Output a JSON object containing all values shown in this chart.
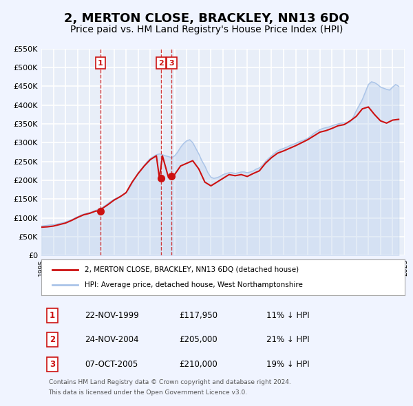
{
  "title": "2, MERTON CLOSE, BRACKLEY, NN13 6DQ",
  "subtitle": "Price paid vs. HM Land Registry's House Price Index (HPI)",
  "title_fontsize": 13,
  "subtitle_fontsize": 10,
  "ylabel": "",
  "ylim": [
    0,
    550000
  ],
  "yticks": [
    0,
    50000,
    100000,
    150000,
    200000,
    250000,
    300000,
    350000,
    400000,
    450000,
    500000,
    550000
  ],
  "ytick_labels": [
    "£0",
    "£50K",
    "£100K",
    "£150K",
    "£200K",
    "£250K",
    "£300K",
    "£350K",
    "£400K",
    "£450K",
    "£500K",
    "£550K"
  ],
  "background_color": "#f0f4ff",
  "plot_bg_color": "#e8eef8",
  "grid_color": "#ffffff",
  "hpi_color": "#aac4e8",
  "price_color": "#cc1111",
  "marker_color": "#cc1111",
  "vline_color": "#cc1111",
  "sale_dates": [
    "1999-11-22",
    "2004-11-24",
    "2005-10-07"
  ],
  "sale_prices": [
    117950,
    205000,
    210000
  ],
  "sale_labels": [
    "1",
    "2",
    "3"
  ],
  "sale_hpi_pct": [
    "11% ↓ HPI",
    "21% ↓ HPI",
    "19% ↓ HPI"
  ],
  "sale_date_strs": [
    "22-NOV-1999",
    "24-NOV-2004",
    "07-OCT-2005"
  ],
  "sale_price_strs": [
    "£117,950",
    "£205,000",
    "£210,000"
  ],
  "legend_price_label": "2, MERTON CLOSE, BRACKLEY, NN13 6DQ (detached house)",
  "legend_hpi_label": "HPI: Average price, detached house, West Northamptonshire",
  "footer_line1": "Contains HM Land Registry data © Crown copyright and database right 2024.",
  "footer_line2": "This data is licensed under the Open Government Licence v3.0.",
  "hpi_data": {
    "years": [
      1995.0,
      1995.25,
      1995.5,
      1995.75,
      1996.0,
      1996.25,
      1996.5,
      1996.75,
      1997.0,
      1997.25,
      1997.5,
      1997.75,
      1998.0,
      1998.25,
      1998.5,
      1998.75,
      1999.0,
      1999.25,
      1999.5,
      1999.75,
      2000.0,
      2000.25,
      2000.5,
      2000.75,
      2001.0,
      2001.25,
      2001.5,
      2001.75,
      2002.0,
      2002.25,
      2002.5,
      2002.75,
      2003.0,
      2003.25,
      2003.5,
      2003.75,
      2004.0,
      2004.25,
      2004.5,
      2004.75,
      2005.0,
      2005.25,
      2005.5,
      2005.75,
      2006.0,
      2006.25,
      2006.5,
      2006.75,
      2007.0,
      2007.25,
      2007.5,
      2007.75,
      2008.0,
      2008.25,
      2008.5,
      2008.75,
      2009.0,
      2009.25,
      2009.5,
      2009.75,
      2010.0,
      2010.25,
      2010.5,
      2010.75,
      2011.0,
      2011.25,
      2011.5,
      2011.75,
      2012.0,
      2012.25,
      2012.5,
      2012.75,
      2013.0,
      2013.25,
      2013.5,
      2013.75,
      2014.0,
      2014.25,
      2014.5,
      2014.75,
      2015.0,
      2015.25,
      2015.5,
      2015.75,
      2016.0,
      2016.25,
      2016.5,
      2016.75,
      2017.0,
      2017.25,
      2017.5,
      2017.75,
      2018.0,
      2018.25,
      2018.5,
      2018.75,
      2019.0,
      2019.25,
      2019.5,
      2019.75,
      2020.0,
      2020.25,
      2020.5,
      2020.75,
      2021.0,
      2021.25,
      2021.5,
      2021.75,
      2022.0,
      2022.25,
      2022.5,
      2022.75,
      2023.0,
      2023.25,
      2023.5,
      2023.75,
      2024.0,
      2024.25,
      2024.5
    ],
    "values": [
      78000,
      79000,
      80000,
      81000,
      82000,
      83000,
      85000,
      87000,
      89000,
      92000,
      95000,
      99000,
      103000,
      107000,
      110000,
      112000,
      114000,
      117000,
      120000,
      123000,
      127000,
      132000,
      138000,
      144000,
      149000,
      153000,
      157000,
      161000,
      168000,
      178000,
      192000,
      207000,
      220000,
      230000,
      240000,
      250000,
      258000,
      263000,
      268000,
      270000,
      268000,
      265000,
      263000,
      260000,
      265000,
      275000,
      288000,
      298000,
      305000,
      308000,
      300000,
      285000,
      270000,
      252000,
      238000,
      220000,
      208000,
      205000,
      207000,
      210000,
      215000,
      218000,
      220000,
      220000,
      218000,
      220000,
      222000,
      222000,
      220000,
      222000,
      225000,
      230000,
      233000,
      240000,
      250000,
      258000,
      265000,
      272000,
      278000,
      282000,
      285000,
      288000,
      292000,
      295000,
      298000,
      302000,
      305000,
      308000,
      312000,
      318000,
      325000,
      330000,
      335000,
      338000,
      340000,
      342000,
      345000,
      348000,
      350000,
      352000,
      353000,
      352000,
      355000,
      368000,
      385000,
      400000,
      415000,
      435000,
      455000,
      462000,
      460000,
      455000,
      448000,
      445000,
      442000,
      440000,
      448000,
      455000,
      450000
    ]
  },
  "price_index_data": {
    "years": [
      1995.0,
      1995.5,
      1996.0,
      1996.5,
      1997.0,
      1997.5,
      1998.0,
      1998.5,
      1999.0,
      1999.5,
      1999.75,
      2000.0,
      2000.5,
      2001.0,
      2001.5,
      2002.0,
      2002.5,
      2003.0,
      2003.5,
      2004.0,
      2004.5,
      2004.75,
      2005.0,
      2005.5,
      2005.75,
      2006.0,
      2006.5,
      2007.0,
      2007.5,
      2008.0,
      2008.5,
      2009.0,
      2009.5,
      2010.0,
      2010.5,
      2011.0,
      2011.5,
      2012.0,
      2012.5,
      2013.0,
      2013.5,
      2014.0,
      2014.5,
      2015.0,
      2015.5,
      2016.0,
      2016.5,
      2017.0,
      2017.5,
      2018.0,
      2018.5,
      2019.0,
      2019.5,
      2020.0,
      2020.5,
      2021.0,
      2021.5,
      2022.0,
      2022.5,
      2023.0,
      2023.5,
      2024.0,
      2024.5
    ],
    "values": [
      75000,
      76000,
      78000,
      82000,
      86000,
      93000,
      101000,
      108000,
      112000,
      118000,
      117950,
      124000,
      135000,
      147000,
      156000,
      167000,
      195000,
      218000,
      238000,
      255000,
      265000,
      205000,
      265000,
      207000,
      210000,
      215000,
      238000,
      245000,
      252000,
      230000,
      195000,
      185000,
      195000,
      205000,
      215000,
      212000,
      215000,
      210000,
      218000,
      225000,
      245000,
      260000,
      272000,
      278000,
      285000,
      292000,
      300000,
      308000,
      318000,
      328000,
      332000,
      338000,
      345000,
      348000,
      358000,
      370000,
      390000,
      395000,
      375000,
      358000,
      352000,
      360000,
      362000
    ]
  }
}
